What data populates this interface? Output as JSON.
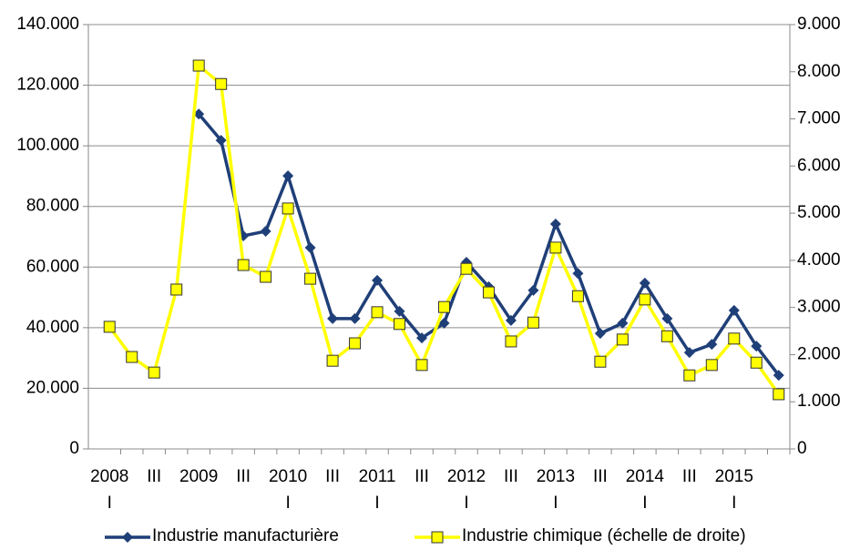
{
  "chart_data": {
    "type": "line",
    "categories": [
      "2008\nI",
      null,
      "III",
      null,
      "2009",
      null,
      "III",
      null,
      "2010\nI",
      null,
      "III",
      null,
      "2011\nI",
      null,
      "III",
      null,
      "2012\nI",
      null,
      "III",
      null,
      "2013\nI",
      null,
      "III",
      null,
      "2014\nI",
      null,
      "III",
      null,
      "2015\nI",
      null,
      null
    ],
    "series": [
      {
        "name": "Industrie manufacturière",
        "color": "#1f3f78",
        "values": [
          null,
          null,
          null,
          null,
          110500,
          101800,
          70300,
          71800,
          90100,
          66400,
          43000,
          43000,
          55600,
          45400,
          36600,
          41500,
          61600,
          53500,
          42400,
          52300,
          74200,
          57900,
          38100,
          41500,
          54700,
          43000,
          31800,
          34500,
          45700,
          33900,
          24300
        ]
      },
      {
        "name": "Industrie chimique (échelle de droite)",
        "color": "#ffff00",
        "axis": "y2",
        "values": [
          2590,
          1950,
          1620,
          3380,
          8130,
          7740,
          3900,
          3650,
          5100,
          3610,
          1870,
          2240,
          2900,
          2650,
          1780,
          3010,
          3820,
          3320,
          2280,
          2680,
          4270,
          3240,
          1850,
          2320,
          3170,
          2390,
          1560,
          1780,
          2340,
          1830,
          1160
        ]
      }
    ],
    "ylim": [
      0,
      140000
    ],
    "yticks": [
      0,
      {
        "value": 20000,
        "label": "20.000"
      },
      {
        "value": 40000,
        "label": "40.000"
      },
      {
        "value": 60000,
        "label": "60.000"
      },
      {
        "value": 80000,
        "label": "80.000"
      },
      {
        "value": 100000,
        "label": "100.000"
      },
      {
        "value": 120000,
        "label": "120.000"
      },
      {
        "value": 140000,
        "label": "140.000"
      }
    ],
    "y2lim": [
      0,
      9000
    ],
    "y2ticks": [
      0,
      {
        "value": 1000,
        "label": "1.000"
      },
      {
        "value": 2000,
        "label": "2.000"
      },
      {
        "value": 3000,
        "label": "3.000"
      },
      {
        "value": 4000,
        "label": "4.000"
      },
      {
        "value": 5000,
        "label": "5.000"
      },
      {
        "value": 6000,
        "label": "6.000"
      },
      {
        "value": 7000,
        "label": "7.000"
      },
      {
        "value": 8000,
        "label": "8.000"
      },
      {
        "value": 9000,
        "label": "9.000"
      }
    ],
    "grid": true,
    "legend": "bottom"
  }
}
